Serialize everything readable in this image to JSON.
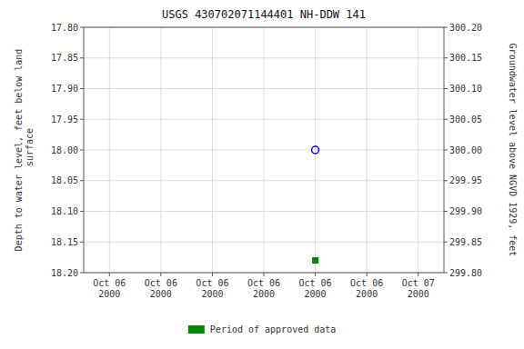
{
  "chart_data": {
    "type": "scatter",
    "title": "USGS 430702071144401 NH-DDW  141",
    "y_label": "Depth to water level, feet below land\n surface",
    "y2_label": "Groundwater level above NGVD 1929, feet",
    "categories": [
      "Oct 06\n2000",
      "Oct 06\n2000",
      "Oct 06\n2000",
      "Oct 06\n2000",
      "Oct 06\n2000",
      "Oct 06\n2000",
      "Oct 07\n2000"
    ],
    "series": [
      {
        "values": [
          null,
          null,
          null,
          null,
          18.0,
          null,
          null
        ],
        "color": "#0000cc",
        "marker": "circle-open"
      },
      {
        "name": "Period of approved data",
        "values": [
          null,
          null,
          null,
          null,
          18.18,
          null,
          null
        ],
        "color": "#008800",
        "marker": "square"
      }
    ],
    "ylim": [
      18.2,
      17.8
    ],
    "yticks": [
      {
        "value": 17.8,
        "label": "17.80"
      },
      17.85,
      {
        "value": 17.9,
        "label": "17.90"
      },
      17.95,
      {
        "value": 18.0,
        "label": "18.00"
      },
      18.05,
      {
        "value": 18.1,
        "label": "18.10"
      },
      18.15,
      {
        "value": 18.2,
        "label": "18.20"
      }
    ],
    "y2lim": [
      299.8,
      300.2
    ],
    "y2ticks": [
      {
        "value": 300.2,
        "label": "300.20"
      },
      300.15,
      {
        "value": 300.1,
        "label": "300.10"
      },
      300.05,
      {
        "value": 300.0,
        "label": "300.00"
      },
      299.95,
      {
        "value": 299.9,
        "label": "299.90"
      },
      299.85,
      {
        "value": 299.8,
        "label": "299.80"
      }
    ],
    "grid": true,
    "legend": "bottom"
  }
}
